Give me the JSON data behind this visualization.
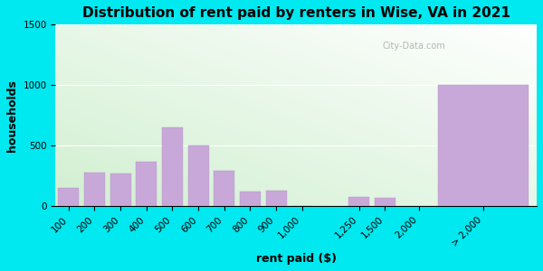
{
  "title": "Distribution of rent paid by renters in Wise, VA in 2021",
  "xlabel": "rent paid ($)",
  "ylabel": "households",
  "bar_labels": [
    "100",
    "200",
    "300",
    "400",
    "500",
    "600",
    "700",
    "800",
    "900",
    "1,000",
    "1,250",
    "1,500",
    "2,000",
    "> 2,000"
  ],
  "bar_values": [
    150,
    280,
    270,
    370,
    650,
    500,
    290,
    120,
    130,
    0,
    80,
    70,
    0,
    1000
  ],
  "bar_color": "#c8a8d8",
  "bar_edge_color": "#b898c8",
  "bg_outer": "#00e8f0",
  "ylim": [
    0,
    1500
  ],
  "yticks": [
    0,
    500,
    1000,
    1500
  ],
  "watermark": "City-Data.com",
  "title_fontsize": 11,
  "axis_label_fontsize": 9,
  "tick_fontsize": 7.5,
  "gt2000_bar_width": 3.5
}
